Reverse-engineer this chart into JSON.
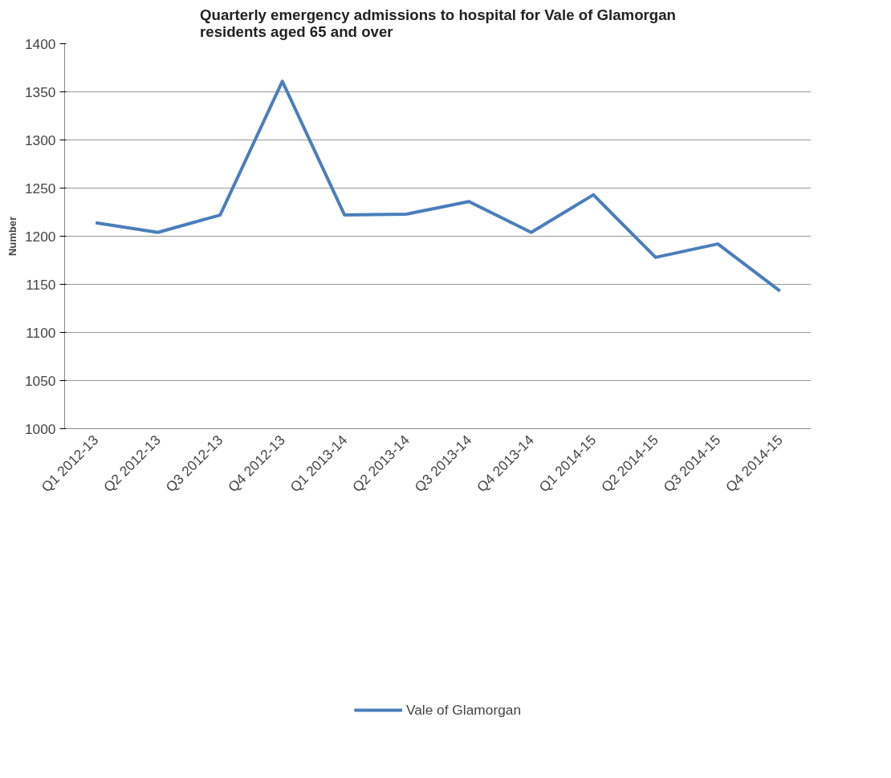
{
  "chart_data": {
    "type": "line",
    "title": "Quarterly emergency admissions to hospital for Vale of Glamorgan residents aged 65 and over",
    "ylabel": "Number",
    "categories": [
      "Q1 2012-13",
      "Q2 2012-13",
      "Q3 2012-13",
      "Q4 2012-13",
      "Q1 2013-14",
      "Q2 2013-14",
      "Q3 2013-14",
      "Q4 2013-14",
      "Q1 2014-15",
      "Q2 2014-15",
      "Q3 2014-15",
      "Q4 2014-15"
    ],
    "series": [
      {
        "name": "Vale of Glamorgan",
        "color": "#4a7ebb",
        "values": [
          1214,
          1204,
          1222,
          1361,
          1222,
          1223,
          1236,
          1204,
          1243,
          1178,
          1192,
          1143
        ]
      }
    ],
    "ylim": [
      1000,
      1400
    ],
    "yticks": [
      1000,
      1050,
      1100,
      1150,
      1200,
      1250,
      1300,
      1350,
      1400
    ],
    "grid": "y",
    "legend": "bottom",
    "marker": "none",
    "line_style": "solid"
  }
}
